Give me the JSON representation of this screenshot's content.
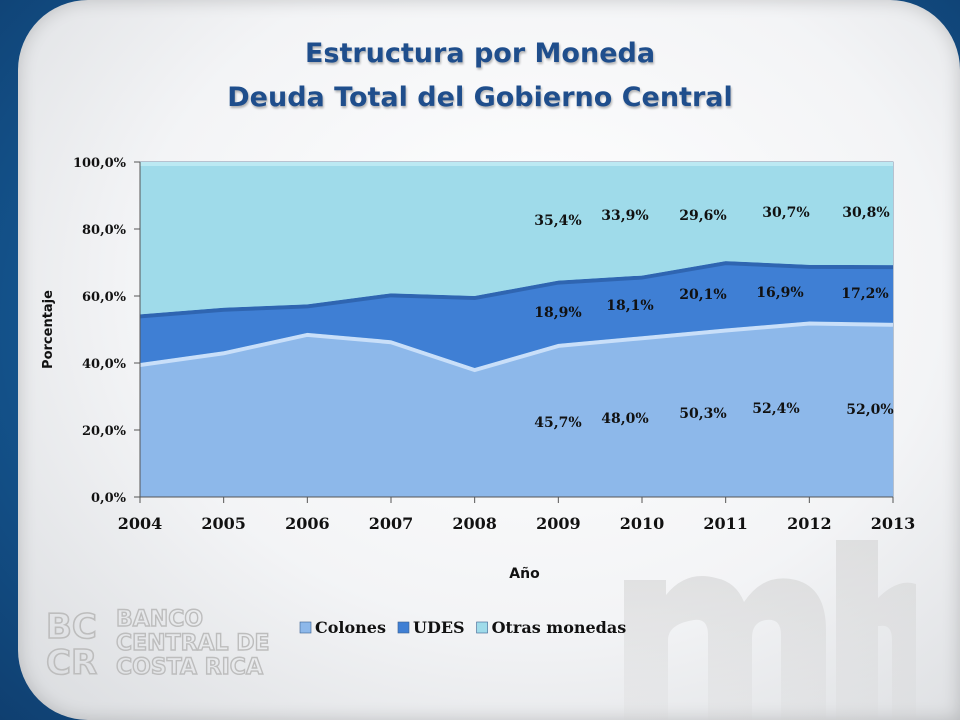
{
  "title": {
    "line1": "Estructura por Moneda",
    "line2": "Deuda Total del Gobierno Central"
  },
  "chart_data": {
    "type": "area",
    "stacked": true,
    "percent": true,
    "title": "Estructura por Moneda\nDeuda Total del Gobierno Central",
    "xlabel": "Año",
    "ylabel": "Porcentaje",
    "x": [
      2004,
      2005,
      2006,
      2007,
      2008,
      2009,
      2010,
      2011,
      2012,
      2013
    ],
    "ylim": [
      0,
      100
    ],
    "yticks": [
      "0,0%",
      "20,0%",
      "40,0%",
      "60,0%",
      "80,0%",
      "100,0%"
    ],
    "legend_position": "bottom",
    "series": [
      {
        "name": "Colones",
        "color": "#8db8ea",
        "values": [
          40.0,
          43.5,
          49.0,
          46.8,
          38.5,
          45.7,
          48.0,
          50.3,
          52.4,
          52.0
        ],
        "labels": {
          "2009": "45,7%",
          "2010": "48,0%",
          "2011": "50,3%",
          "2012": "52,4%",
          "2013": "52,0%"
        }
      },
      {
        "name": "UDES",
        "color": "#3f7fd4",
        "values": [
          14.5,
          13.0,
          8.5,
          14.0,
          21.5,
          18.9,
          18.1,
          20.1,
          16.9,
          17.2
        ],
        "labels": {
          "2009": "18,9%",
          "2010": "18,1%",
          "2011": "20,1%",
          "2012": "16,9%",
          "2013": "17,2%"
        }
      },
      {
        "name": "Otras monedas",
        "color": "#9fdbea",
        "values": [
          45.5,
          43.5,
          42.5,
          39.2,
          40.0,
          35.4,
          33.9,
          29.6,
          30.7,
          30.8
        ],
        "labels": {
          "2009": "35,4%",
          "2010": "33,9%",
          "2011": "29,6%",
          "2012": "30,7%",
          "2013": "30,8%"
        }
      }
    ]
  },
  "logos": {
    "bccr_monogram": "BC CR",
    "bccr_lines": [
      "BANCO",
      "CENTRAL DE",
      "COSTA RICA"
    ],
    "mh_watermark": "mh"
  }
}
